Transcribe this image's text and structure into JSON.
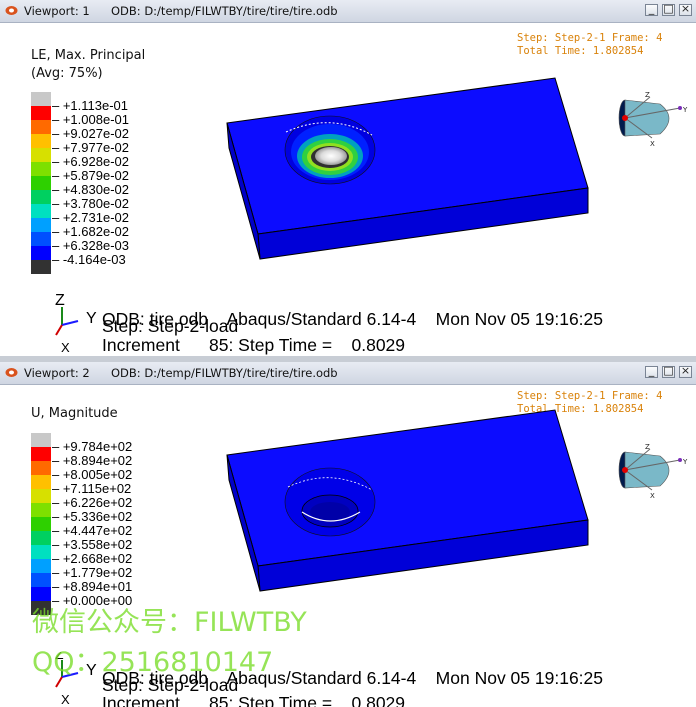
{
  "viewport1": {
    "title": "Viewport: 1",
    "odb_path": "ODB: D:/temp/FILWTBY/tire/tire/tire.odb",
    "step_line": "Step: Step-2-1 Frame: 4",
    "time_line": "Total Time: 1.802854",
    "contour_title": "LE, Max. Principal",
    "contour_subtitle": "(Avg: 75%)",
    "legend_values": [
      "+1.113e-01",
      "+1.008e-01",
      "+9.027e-02",
      "+7.977e-02",
      "+6.928e-02",
      "+5.879e-02",
      "+4.830e-02",
      "+3.780e-02",
      "+2.731e-02",
      "+1.682e-02",
      "+6.328e-03",
      "-4.164e-03"
    ],
    "status_line1": "ODB: tire.odb    Abaqus/Standard 6.14-4    Mon Nov 05 19:16:25",
    "status_line2": "Step: Step-2-load",
    "status_line3": "Increment      85: Step Time =    0.8029"
  },
  "viewport2": {
    "title": "Viewport: 2",
    "odb_path": "ODB: D:/temp/FILWTBY/tire/tire/tire.odb",
    "step_line": "Step: Step-2-1 Frame: 4",
    "time_line": "Total Time: 1.802854",
    "contour_title": "U, Magnitude",
    "legend_values": [
      "+9.784e+02",
      "+8.894e+02",
      "+8.005e+02",
      "+7.115e+02",
      "+6.226e+02",
      "+5.336e+02",
      "+4.447e+02",
      "+3.558e+02",
      "+2.668e+02",
      "+1.779e+02",
      "+8.894e+01",
      "+0.000e+00"
    ],
    "status_line1": "ODB: tire.odb    Abaqus/Standard 6.14-4    Mon Nov 05 19:16:25",
    "status_line2": "Step: Step-2-load",
    "status_line3": "Increment      85: Step Time =    0.8029"
  },
  "triad_labels": {
    "z": "Z",
    "y": "Y",
    "x": "X"
  },
  "window_buttons": {
    "minimize": "_",
    "restore": "□",
    "close": "×"
  },
  "legend_colors": [
    "#c8c8c8",
    "#ff0000",
    "#ff6a00",
    "#ffc000",
    "#d7e000",
    "#7ee000",
    "#2ed000",
    "#00d060",
    "#00e0c0",
    "#00a0ff",
    "#0050ff",
    "#0000ff",
    "#323232"
  ],
  "watermark": {
    "line1": "微信公众号：FILWTBY",
    "line2": "QQ：2516810147"
  }
}
